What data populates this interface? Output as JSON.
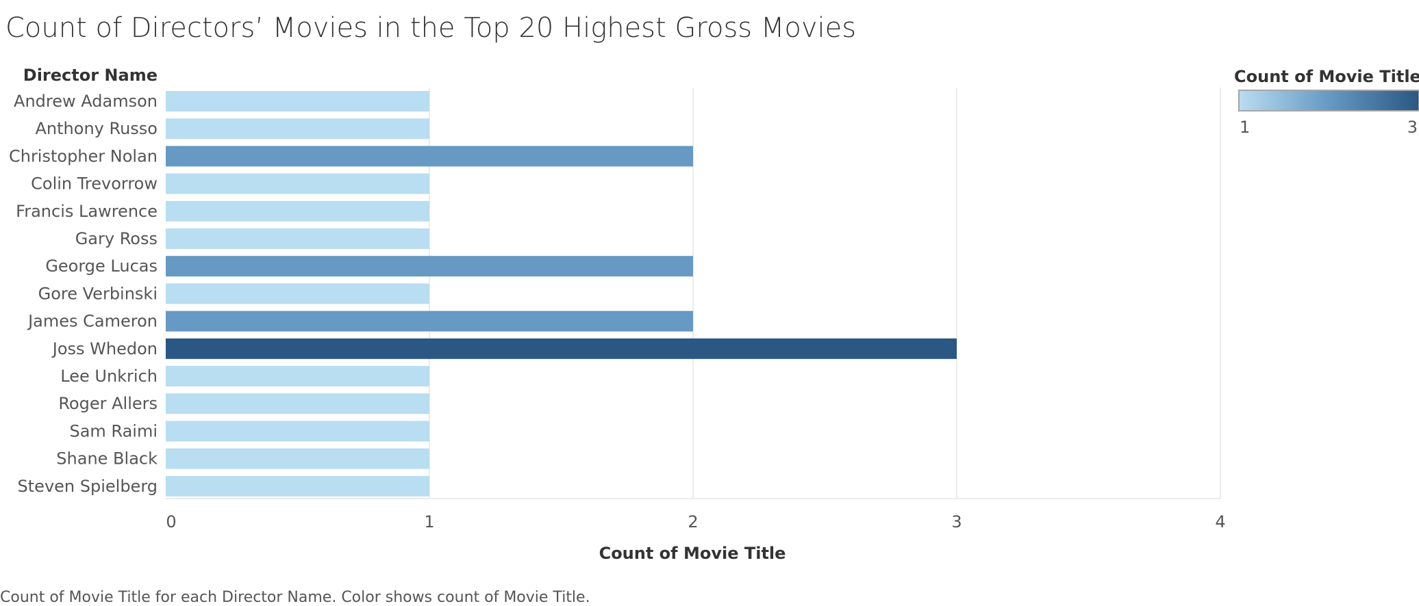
{
  "chart_data": {
    "type": "bar",
    "orientation": "horizontal",
    "title": "Count of Directors’ Movies in the Top 20 Highest Gross Movies",
    "row_header": "Director Name",
    "xlabel": "Count of Movie Title",
    "xlim": [
      0,
      4
    ],
    "xticks": [
      0,
      1,
      2,
      3,
      4
    ],
    "grid": "vertical",
    "categories": [
      "Andrew Adamson",
      "Anthony Russo",
      "Christopher Nolan",
      "Colin Trevorrow",
      "Francis Lawrence",
      "Gary Ross",
      "George Lucas",
      "Gore Verbinski",
      "James Cameron",
      "Joss Whedon",
      "Lee Unkrich",
      "Roger Allers",
      "Sam Raimi",
      "Shane Black",
      "Steven Spielberg"
    ],
    "values": [
      1,
      1,
      2,
      1,
      1,
      1,
      2,
      1,
      2,
      3,
      1,
      1,
      1,
      1,
      1
    ],
    "legend": {
      "title": "Count of Movie Title",
      "position": "top-right",
      "min": 1,
      "max": 3,
      "min_label": "1",
      "max_label": "3"
    },
    "colors": {
      "low": "#b9ddf1",
      "mid": "#6699c3",
      "high": "#2a5783",
      "grid": "#e6e6e6",
      "axis": "#d9d9d9"
    },
    "caption": "Count of Movie Title for each Director Name.  Color shows count of Movie Title."
  }
}
